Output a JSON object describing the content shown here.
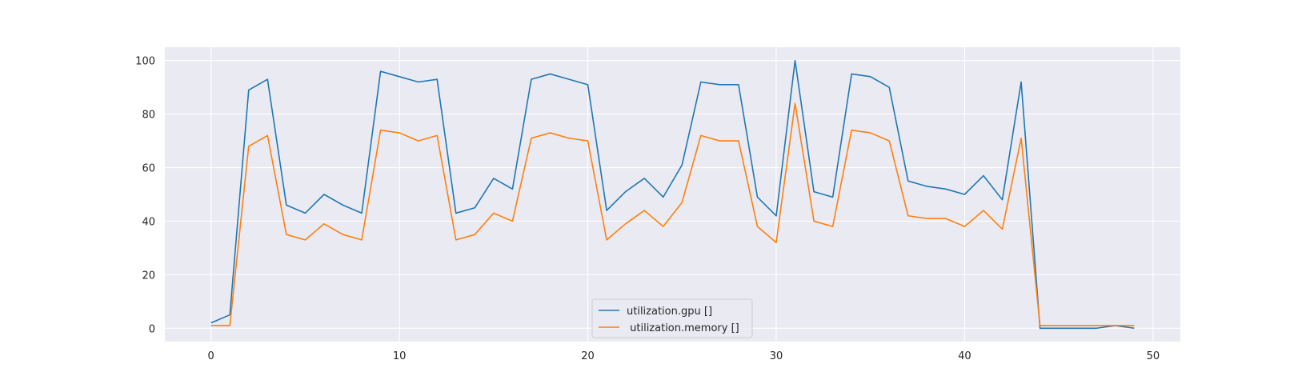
{
  "chart_data": {
    "type": "line",
    "title": "",
    "xlabel": "",
    "ylabel": "",
    "xlim": [
      -2.45,
      51.45
    ],
    "ylim": [
      -5,
      105
    ],
    "xticks": [
      0,
      10,
      20,
      30,
      40,
      50
    ],
    "yticks": [
      0,
      20,
      40,
      60,
      80,
      100
    ],
    "grid": true,
    "legend_position": "bottom-center",
    "x": [
      0,
      1,
      2,
      3,
      4,
      5,
      6,
      7,
      8,
      9,
      10,
      11,
      12,
      13,
      14,
      15,
      16,
      17,
      18,
      19,
      20,
      21,
      22,
      23,
      24,
      25,
      26,
      27,
      28,
      29,
      30,
      31,
      32,
      33,
      34,
      35,
      36,
      37,
      38,
      39,
      40,
      41,
      42,
      43,
      44,
      45,
      46,
      47,
      48,
      49
    ],
    "series": [
      {
        "name": "utilization.gpu []",
        "color": "#1f77b4",
        "values": [
          2,
          5,
          89,
          93,
          46,
          43,
          50,
          46,
          43,
          96,
          94,
          92,
          93,
          43,
          45,
          56,
          52,
          93,
          95,
          93,
          91,
          44,
          51,
          56,
          49,
          61,
          92,
          91,
          91,
          49,
          42,
          100,
          51,
          49,
          95,
          94,
          90,
          55,
          53,
          52,
          50,
          57,
          48,
          92,
          0,
          0,
          0,
          0,
          1,
          0
        ]
      },
      {
        "name": " utilization.memory []",
        "color": "#ff7f0e",
        "values": [
          1,
          1,
          68,
          72,
          35,
          33,
          39,
          35,
          33,
          74,
          73,
          70,
          72,
          33,
          35,
          43,
          40,
          71,
          73,
          71,
          70,
          33,
          39,
          44,
          38,
          47,
          72,
          70,
          70,
          38,
          32,
          84,
          40,
          38,
          74,
          73,
          70,
          42,
          41,
          41,
          38,
          44,
          37,
          71,
          1,
          1,
          1,
          1,
          1,
          1
        ]
      }
    ]
  }
}
